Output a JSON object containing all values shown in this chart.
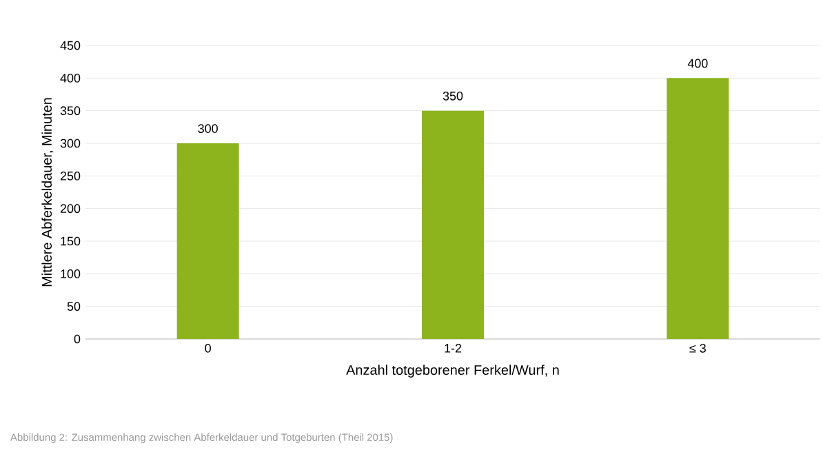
{
  "chart_data": {
    "type": "bar",
    "xlabel": "Anzahl totgeborener Ferkel/Wurf, n",
    "ylabel": "Mittlere Abferkeldauer, Minuten",
    "categories": [
      "0",
      "1-2",
      "≤ 3"
    ],
    "values": [
      300,
      350,
      400
    ],
    "color": "#8db41c",
    "ylim": [
      0,
      450
    ],
    "yticks": [
      0,
      50,
      100,
      150,
      200,
      250,
      300,
      350,
      400,
      450
    ],
    "grid": "y",
    "data_labels": true,
    "annotations": [
      "Abbildung 2: Zusammenhang zwischen Abferkeldauer und Totgeburten (Theil 2015)"
    ]
  }
}
